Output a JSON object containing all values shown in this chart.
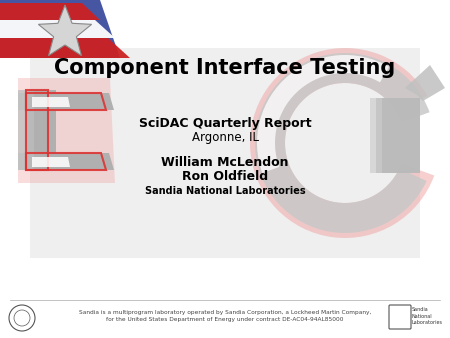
{
  "title": "Component Interface Testing",
  "title_fontsize": 15,
  "title_fontweight": "bold",
  "line1": "SciDAC Quarterly Report",
  "line1_fontsize": 9,
  "line1_fontweight": "bold",
  "line2": "Argonne, IL",
  "line2_fontsize": 8.5,
  "line3": "William McLendon",
  "line3_fontsize": 9,
  "line3_fontweight": "bold",
  "line4": "Ron Oldfield",
  "line4_fontsize": 9,
  "line4_fontweight": "bold",
  "line5": "Sandia National Laboratories",
  "line5_fontsize": 7,
  "line5_fontweight": "bold",
  "footer_text": "Sandia is a multiprogram laboratory operated by Sandia Corporation, a Lockheed Martin Company,\nfor the United States Department of Energy under contract DE-AC04-94AL85000",
  "footer_fontsize": 4.2,
  "bg_color": "#ffffff",
  "gray_shape": "#c8c8c8",
  "gray_dark": "#b0b0b0",
  "red_accent": "#dd3333",
  "pink_glow": "#f0a0a0",
  "text_color": "#000000",
  "flag_red": "#cc2222",
  "flag_blue": "#334499"
}
